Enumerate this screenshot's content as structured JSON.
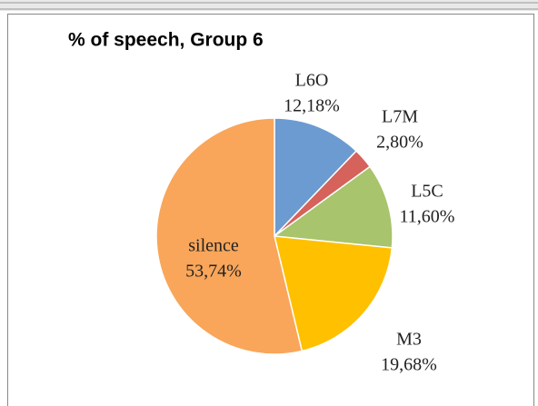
{
  "chart_data": {
    "type": "pie",
    "title": "% of speech, Group 6",
    "categories": [
      "L6O",
      "L7M",
      "L5C",
      "M3",
      "silence"
    ],
    "values": [
      12.18,
      2.8,
      11.6,
      19.68,
      53.74
    ],
    "value_labels": [
      "12,18%",
      "2,80%",
      "11,60%",
      "19,68%",
      "53,74%"
    ],
    "colors": [
      "#6b9bd0",
      "#d5625b",
      "#a8c46c",
      "#ffc000",
      "#f9a65a"
    ]
  }
}
